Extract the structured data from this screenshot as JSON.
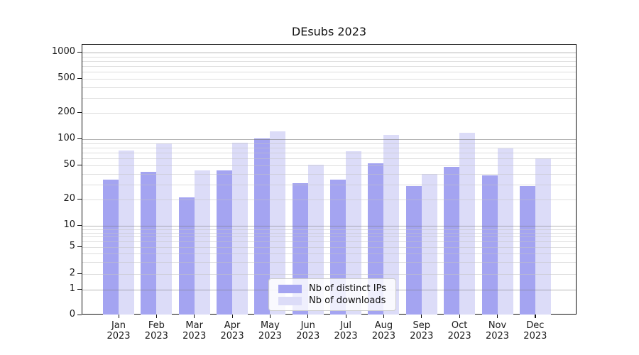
{
  "title": "DEsubs 2023",
  "chart_data": {
    "type": "bar",
    "title": "DEsubs 2023",
    "categories": [
      "Jan 2023",
      "Feb 2023",
      "Mar 2023",
      "Apr 2023",
      "May 2023",
      "Jun 2023",
      "Jul 2023",
      "Aug 2023",
      "Sep 2023",
      "Oct 2023",
      "Nov 2023",
      "Dec 2023"
    ],
    "series": [
      {
        "name": "Nb of distinct IPs",
        "color": "#a4a4f1",
        "values": [
          34,
          42,
          21,
          44,
          102,
          31,
          34,
          53,
          29,
          48,
          38,
          29
        ]
      },
      {
        "name": "Nb of downloads",
        "color": "#dcdcf8",
        "values": [
          74,
          89,
          44,
          91,
          122,
          51,
          73,
          111,
          40,
          119,
          79,
          60
        ]
      }
    ],
    "xlabel": "",
    "ylabel": "",
    "yscale": "symlog",
    "ylim": [
      0,
      1200
    ],
    "y_tick_values": [
      0,
      1,
      2,
      5,
      10,
      20,
      50,
      100,
      200,
      500,
      1000
    ],
    "y_major_grid": [
      1,
      10,
      100,
      1000
    ],
    "y_minor_grid": [
      2,
      3,
      4,
      5,
      6,
      7,
      8,
      9,
      20,
      30,
      40,
      50,
      60,
      70,
      80,
      90,
      200,
      300,
      400,
      500,
      600,
      700,
      800,
      900
    ],
    "grid": "horizontal major+minor",
    "legend_position": "lower center"
  },
  "legend": {
    "items": [
      {
        "label": "Nb of distinct IPs",
        "color": "#a4a4f1"
      },
      {
        "label": "Nb of downloads",
        "color": "#dcdcf8"
      }
    ]
  },
  "colors": {
    "bar_distinct_ips": "#a4a4f1",
    "bar_downloads": "#dcdcf8",
    "major_gridline": "#b5b5b5",
    "minor_gridline": "#e5e5e5",
    "axis_spine": "#111111",
    "text": "#1a1a1a",
    "legend_border": "#cccccc"
  }
}
